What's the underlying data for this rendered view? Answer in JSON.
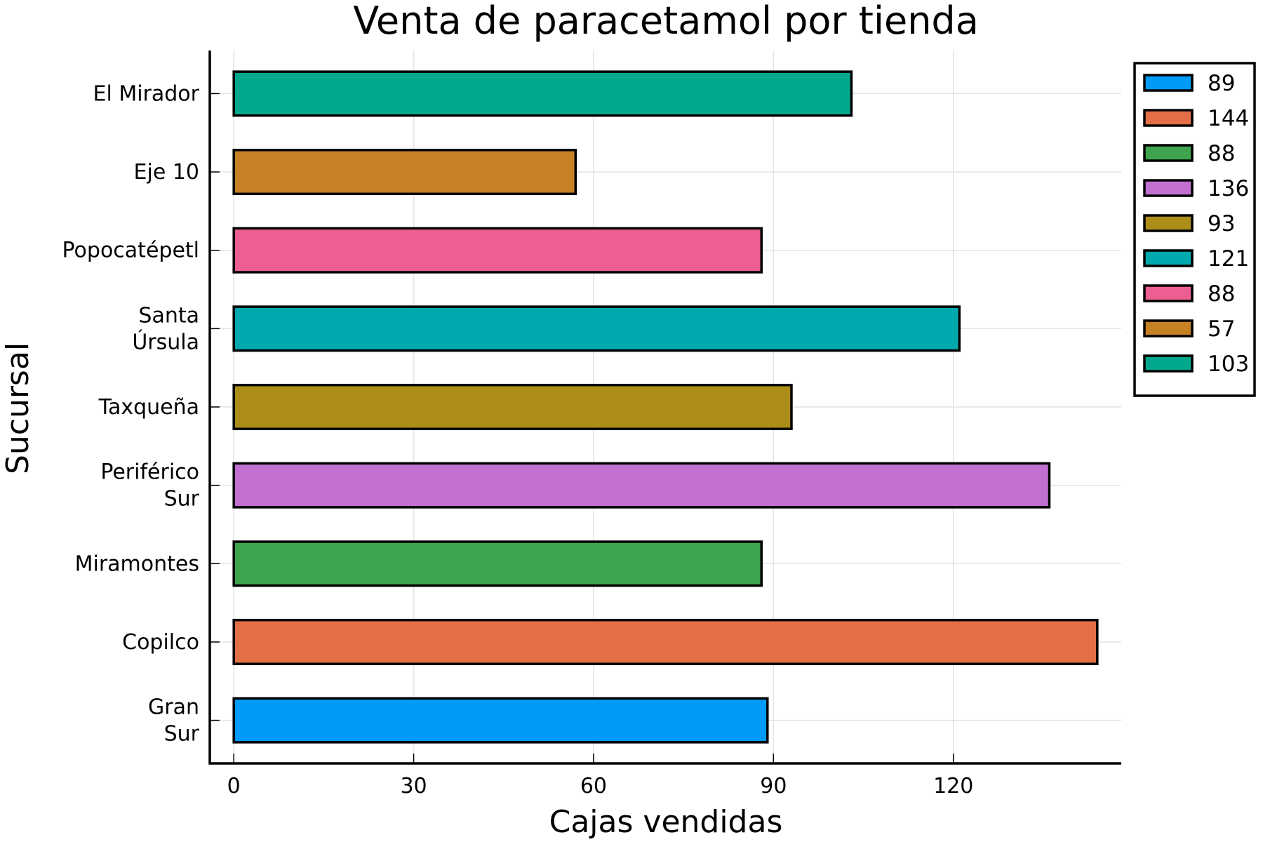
{
  "chart_data": {
    "type": "bar",
    "orientation": "horizontal",
    "title": "Venta de paracetamol por tienda",
    "xlabel": "Cajas vendidas",
    "ylabel": "Sucursal",
    "xlim": [
      -4,
      148
    ],
    "xticks": [
      0,
      30,
      60,
      90,
      120
    ],
    "grid": true,
    "legend_position": "top-right",
    "categories": [
      [
        "Gran",
        "Sur"
      ],
      [
        "Copilco"
      ],
      [
        "Miramontes"
      ],
      [
        "Periférico",
        "Sur"
      ],
      [
        "Taxqueña"
      ],
      [
        "Santa",
        "Úrsula"
      ],
      [
        "Popocatépetl"
      ],
      [
        "Eje 10"
      ],
      [
        "El Mirador"
      ]
    ],
    "values": [
      89,
      144,
      88,
      136,
      93,
      121,
      88,
      57,
      103
    ],
    "colors": [
      "#009af9",
      "#e26f46",
      "#3ea44e",
      "#c271d2",
      "#ac8d18",
      "#00a9ad",
      "#ed5e93",
      "#c68125",
      "#00a98d"
    ],
    "legend": [
      "89",
      "144",
      "88",
      "136",
      "93",
      "121",
      "88",
      "57",
      "103"
    ]
  }
}
